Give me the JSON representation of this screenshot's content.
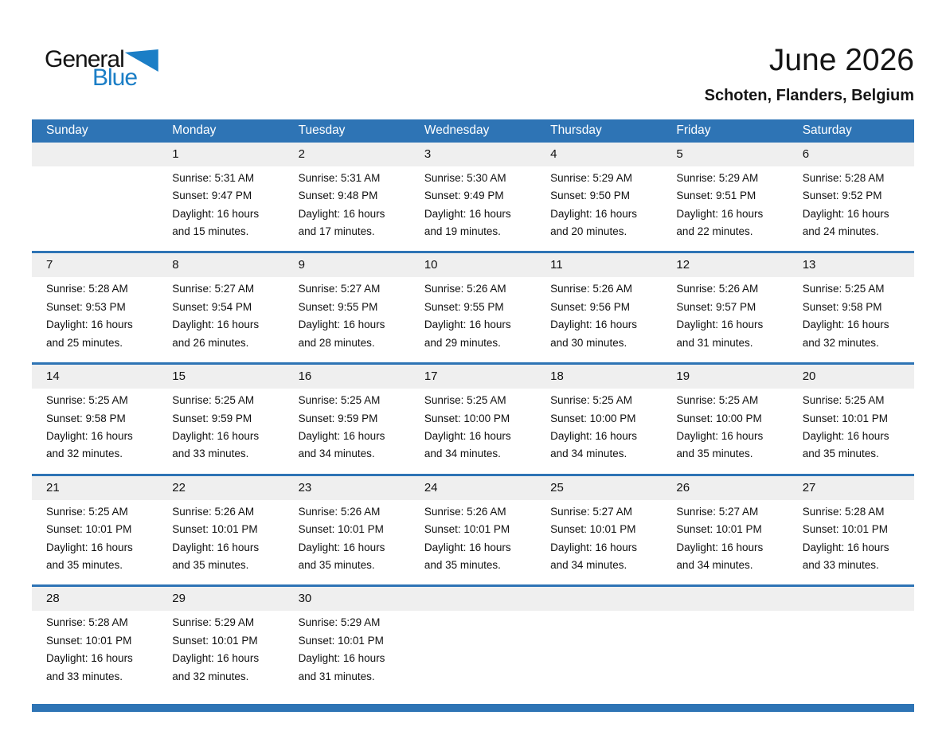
{
  "logo": {
    "general": "General",
    "blue": "Blue",
    "triangle_icon": "blue-pennant-triangle"
  },
  "header": {
    "month_year": "June 2026",
    "location": "Schoten, Flanders, Belgium"
  },
  "colors": {
    "header_blue": "#2e74b5",
    "logo_blue": "#1b7ec6",
    "day_strip_gray": "#efefef"
  },
  "weekdays": [
    "Sunday",
    "Monday",
    "Tuesday",
    "Wednesday",
    "Thursday",
    "Friday",
    "Saturday"
  ],
  "weeks": [
    [
      null,
      {
        "num": "1",
        "lines": [
          "Sunrise: 5:31 AM",
          "Sunset: 9:47 PM",
          "Daylight: 16 hours",
          "and 15 minutes."
        ]
      },
      {
        "num": "2",
        "lines": [
          "Sunrise: 5:31 AM",
          "Sunset: 9:48 PM",
          "Daylight: 16 hours",
          "and 17 minutes."
        ]
      },
      {
        "num": "3",
        "lines": [
          "Sunrise: 5:30 AM",
          "Sunset: 9:49 PM",
          "Daylight: 16 hours",
          "and 19 minutes."
        ]
      },
      {
        "num": "4",
        "lines": [
          "Sunrise: 5:29 AM",
          "Sunset: 9:50 PM",
          "Daylight: 16 hours",
          "and 20 minutes."
        ]
      },
      {
        "num": "5",
        "lines": [
          "Sunrise: 5:29 AM",
          "Sunset: 9:51 PM",
          "Daylight: 16 hours",
          "and 22 minutes."
        ]
      },
      {
        "num": "6",
        "lines": [
          "Sunrise: 5:28 AM",
          "Sunset: 9:52 PM",
          "Daylight: 16 hours",
          "and 24 minutes."
        ]
      }
    ],
    [
      {
        "num": "7",
        "lines": [
          "Sunrise: 5:28 AM",
          "Sunset: 9:53 PM",
          "Daylight: 16 hours",
          "and 25 minutes."
        ]
      },
      {
        "num": "8",
        "lines": [
          "Sunrise: 5:27 AM",
          "Sunset: 9:54 PM",
          "Daylight: 16 hours",
          "and 26 minutes."
        ]
      },
      {
        "num": "9",
        "lines": [
          "Sunrise: 5:27 AM",
          "Sunset: 9:55 PM",
          "Daylight: 16 hours",
          "and 28 minutes."
        ]
      },
      {
        "num": "10",
        "lines": [
          "Sunrise: 5:26 AM",
          "Sunset: 9:55 PM",
          "Daylight: 16 hours",
          "and 29 minutes."
        ]
      },
      {
        "num": "11",
        "lines": [
          "Sunrise: 5:26 AM",
          "Sunset: 9:56 PM",
          "Daylight: 16 hours",
          "and 30 minutes."
        ]
      },
      {
        "num": "12",
        "lines": [
          "Sunrise: 5:26 AM",
          "Sunset: 9:57 PM",
          "Daylight: 16 hours",
          "and 31 minutes."
        ]
      },
      {
        "num": "13",
        "lines": [
          "Sunrise: 5:25 AM",
          "Sunset: 9:58 PM",
          "Daylight: 16 hours",
          "and 32 minutes."
        ]
      }
    ],
    [
      {
        "num": "14",
        "lines": [
          "Sunrise: 5:25 AM",
          "Sunset: 9:58 PM",
          "Daylight: 16 hours",
          "and 32 minutes."
        ]
      },
      {
        "num": "15",
        "lines": [
          "Sunrise: 5:25 AM",
          "Sunset: 9:59 PM",
          "Daylight: 16 hours",
          "and 33 minutes."
        ]
      },
      {
        "num": "16",
        "lines": [
          "Sunrise: 5:25 AM",
          "Sunset: 9:59 PM",
          "Daylight: 16 hours",
          "and 34 minutes."
        ]
      },
      {
        "num": "17",
        "lines": [
          "Sunrise: 5:25 AM",
          "Sunset: 10:00 PM",
          "Daylight: 16 hours",
          "and 34 minutes."
        ]
      },
      {
        "num": "18",
        "lines": [
          "Sunrise: 5:25 AM",
          "Sunset: 10:00 PM",
          "Daylight: 16 hours",
          "and 34 minutes."
        ]
      },
      {
        "num": "19",
        "lines": [
          "Sunrise: 5:25 AM",
          "Sunset: 10:00 PM",
          "Daylight: 16 hours",
          "and 35 minutes."
        ]
      },
      {
        "num": "20",
        "lines": [
          "Sunrise: 5:25 AM",
          "Sunset: 10:01 PM",
          "Daylight: 16 hours",
          "and 35 minutes."
        ]
      }
    ],
    [
      {
        "num": "21",
        "lines": [
          "Sunrise: 5:25 AM",
          "Sunset: 10:01 PM",
          "Daylight: 16 hours",
          "and 35 minutes."
        ]
      },
      {
        "num": "22",
        "lines": [
          "Sunrise: 5:26 AM",
          "Sunset: 10:01 PM",
          "Daylight: 16 hours",
          "and 35 minutes."
        ]
      },
      {
        "num": "23",
        "lines": [
          "Sunrise: 5:26 AM",
          "Sunset: 10:01 PM",
          "Daylight: 16 hours",
          "and 35 minutes."
        ]
      },
      {
        "num": "24",
        "lines": [
          "Sunrise: 5:26 AM",
          "Sunset: 10:01 PM",
          "Daylight: 16 hours",
          "and 35 minutes."
        ]
      },
      {
        "num": "25",
        "lines": [
          "Sunrise: 5:27 AM",
          "Sunset: 10:01 PM",
          "Daylight: 16 hours",
          "and 34 minutes."
        ]
      },
      {
        "num": "26",
        "lines": [
          "Sunrise: 5:27 AM",
          "Sunset: 10:01 PM",
          "Daylight: 16 hours",
          "and 34 minutes."
        ]
      },
      {
        "num": "27",
        "lines": [
          "Sunrise: 5:28 AM",
          "Sunset: 10:01 PM",
          "Daylight: 16 hours",
          "and 33 minutes."
        ]
      }
    ],
    [
      {
        "num": "28",
        "lines": [
          "Sunrise: 5:28 AM",
          "Sunset: 10:01 PM",
          "Daylight: 16 hours",
          "and 33 minutes."
        ]
      },
      {
        "num": "29",
        "lines": [
          "Sunrise: 5:29 AM",
          "Sunset: 10:01 PM",
          "Daylight: 16 hours",
          "and 32 minutes."
        ]
      },
      {
        "num": "30",
        "lines": [
          "Sunrise: 5:29 AM",
          "Sunset: 10:01 PM",
          "Daylight: 16 hours",
          "and 31 minutes."
        ]
      },
      null,
      null,
      null,
      null
    ]
  ]
}
